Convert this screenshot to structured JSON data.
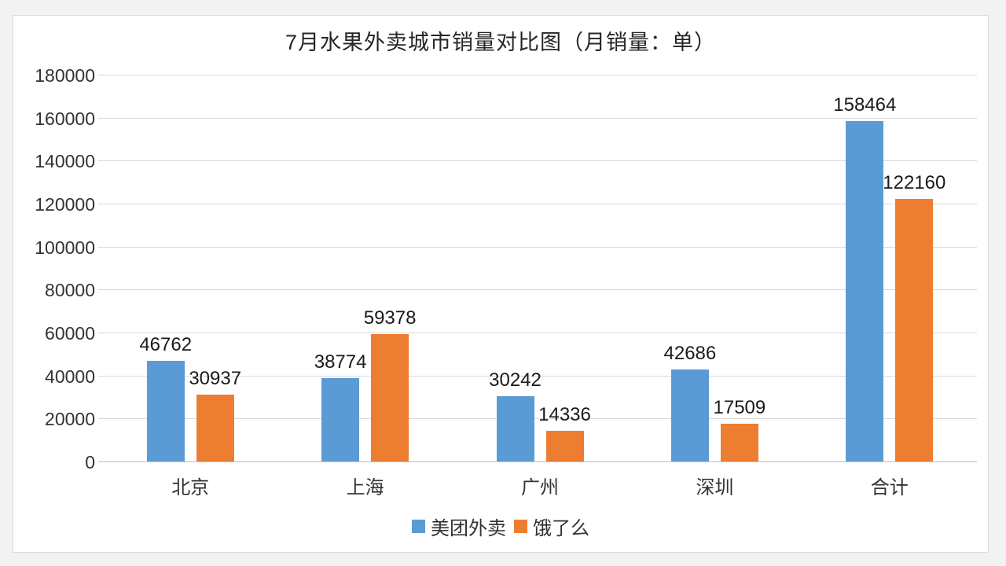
{
  "chart_data": {
    "type": "bar",
    "title": "7月水果外卖城市销量对比图（月销量：单）",
    "categories": [
      "北京",
      "上海",
      "广州",
      "深圳",
      "合计"
    ],
    "series": [
      {
        "name": "美团外卖",
        "color": "#5B9BD5",
        "values": [
          46762,
          38774,
          30242,
          42686,
          158464
        ]
      },
      {
        "name": "饿了么",
        "color": "#ED7D31",
        "values": [
          30937,
          59378,
          14336,
          17509,
          122160
        ]
      }
    ],
    "ylim": [
      0,
      180000
    ],
    "y_tick_step": 20000,
    "y_ticks": [
      0,
      20000,
      40000,
      60000,
      80000,
      100000,
      120000,
      140000,
      160000,
      180000
    ],
    "grid": true,
    "data_labels": true,
    "legend_position": "bottom",
    "colors": {
      "gridline": "#d9d9d9",
      "axis_line": "#bfbfbf",
      "label_text": "#1a1a1a",
      "tick_text": "#333333"
    }
  }
}
